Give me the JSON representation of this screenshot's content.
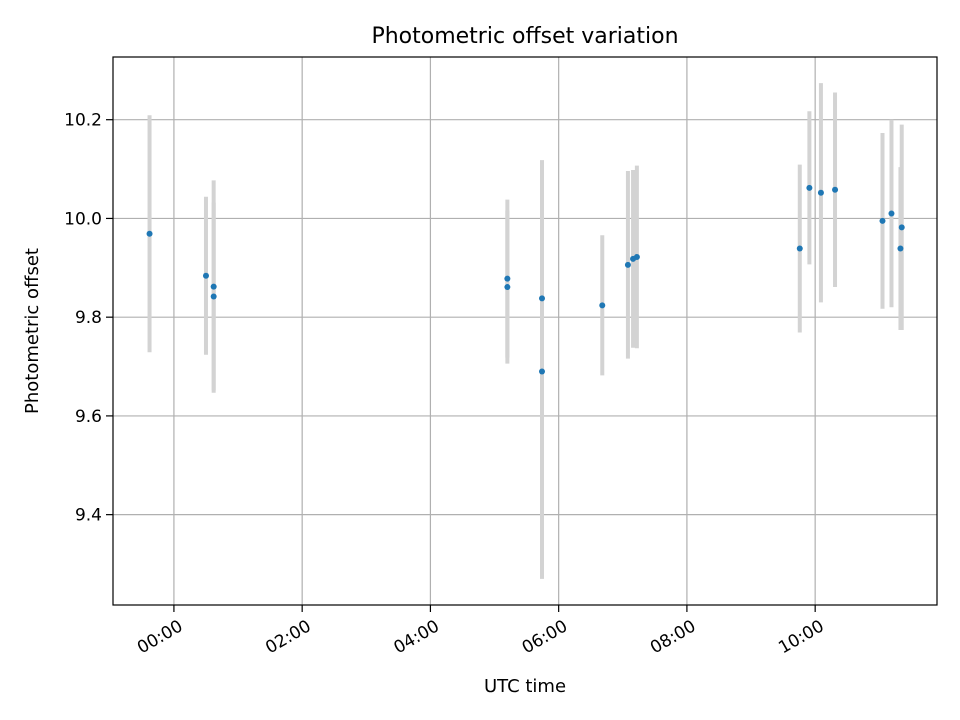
{
  "chart_data": {
    "type": "scatter",
    "title": "Photometric offset variation",
    "xlabel": "UTC time",
    "ylabel": "Photometric offset",
    "xlim_hours": [
      -0.95,
      11.9
    ],
    "ylim": [
      9.217,
      10.327
    ],
    "x_ticks": [
      {
        "hour": 0,
        "label": "00:00"
      },
      {
        "hour": 2,
        "label": "02:00"
      },
      {
        "hour": 4,
        "label": "04:00"
      },
      {
        "hour": 6,
        "label": "06:00"
      },
      {
        "hour": 8,
        "label": "08:00"
      },
      {
        "hour": 10,
        "label": "10:00"
      }
    ],
    "y_ticks": [
      {
        "value": 9.4,
        "label": "9.4"
      },
      {
        "value": 9.6,
        "label": "9.6"
      },
      {
        "value": 9.8,
        "label": "9.8"
      },
      {
        "value": 10.0,
        "label": "10.0"
      },
      {
        "value": 10.2,
        "label": "10.2"
      }
    ],
    "grid": true,
    "colors": {
      "point": "#1f77b4",
      "errorbar": "#d3d3d3",
      "grid": "#b0b0b0",
      "axis": "#000000"
    },
    "points": [
      {
        "time": "23:37",
        "hour": -0.38,
        "y": 9.969,
        "yerr": 0.24
      },
      {
        "time": "00:30",
        "hour": 0.5,
        "y": 9.884,
        "yerr": 0.16
      },
      {
        "time": "00:38",
        "hour": 0.62,
        "y": 9.862,
        "yerr": 0.215
      },
      {
        "time": "00:38",
        "hour": 0.62,
        "y": 9.842,
        "yerr": 0.19
      },
      {
        "time": "05:12",
        "hour": 5.2,
        "y": 9.878,
        "yerr": 0.16
      },
      {
        "time": "05:12",
        "hour": 5.2,
        "y": 9.861,
        "yerr": 0.155
      },
      {
        "time": "05:45",
        "hour": 5.74,
        "y": 9.838,
        "yerr": 0.28
      },
      {
        "time": "05:45",
        "hour": 5.74,
        "y": 9.69,
        "yerr": 0.42
      },
      {
        "time": "06:41",
        "hour": 6.68,
        "y": 9.824,
        "yerr": 0.142
      },
      {
        "time": "07:05",
        "hour": 7.08,
        "y": 9.906,
        "yerr": 0.19
      },
      {
        "time": "07:10",
        "hour": 7.16,
        "y": 9.918,
        "yerr": 0.18
      },
      {
        "time": "07:13",
        "hour": 7.22,
        "y": 9.922,
        "yerr": 0.185
      },
      {
        "time": "09:46",
        "hour": 9.76,
        "y": 9.939,
        "yerr": 0.17
      },
      {
        "time": "09:55",
        "hour": 9.91,
        "y": 10.062,
        "yerr": 0.155
      },
      {
        "time": "10:05",
        "hour": 10.09,
        "y": 10.052,
        "yerr": 0.222
      },
      {
        "time": "10:18",
        "hour": 10.31,
        "y": 10.058,
        "yerr": 0.197
      },
      {
        "time": "11:03",
        "hour": 11.05,
        "y": 9.995,
        "yerr": 0.178
      },
      {
        "time": "11:11",
        "hour": 11.19,
        "y": 10.01,
        "yerr": 0.19
      },
      {
        "time": "11:20",
        "hour": 11.33,
        "y": 9.939,
        "yerr": 0.165
      },
      {
        "time": "11:20",
        "hour": 11.35,
        "y": 9.982,
        "yerr": 0.208
      }
    ]
  }
}
